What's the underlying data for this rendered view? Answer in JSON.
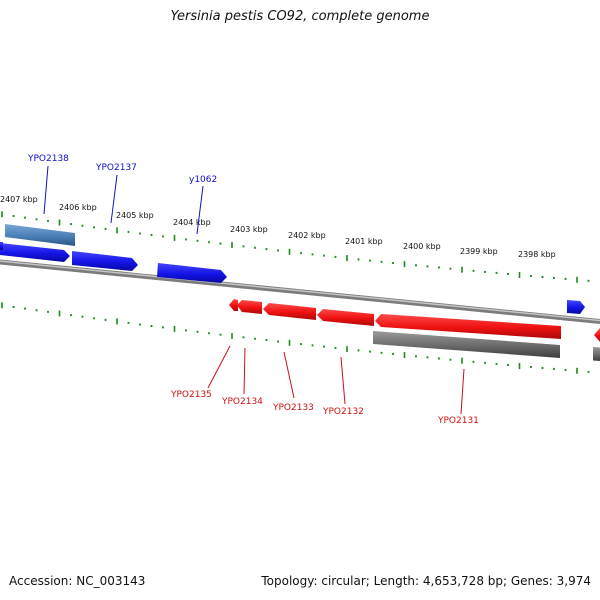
{
  "title": "Yersinia pestis CO92, complete genome",
  "accession_label": "Accession: NC_003143",
  "summary_label": "Topology: circular; Length: 4,653,728 bp; Genes: 3,974",
  "scale_labels": [
    "2407 kbp",
    "2406 kbp",
    "2405 kbp",
    "2404 kbp",
    "2403 kbp",
    "2402 kbp",
    "2401 kbp",
    "2400 kbp",
    "2399 kbp",
    "2398 kbp"
  ],
  "forward_genes": [
    {
      "label": "YPO2138",
      "color": "#1010c8"
    },
    {
      "label": "YPO2137",
      "color": "#1010c8"
    },
    {
      "label": "y1062",
      "color": "#1010c8"
    }
  ],
  "reverse_genes": [
    {
      "label": "YPO2135",
      "color": "#cc1111"
    },
    {
      "label": "YPO2134",
      "color": "#cc1111"
    },
    {
      "label": "YPO2133",
      "color": "#cc1111"
    },
    {
      "label": "YPO2132",
      "color": "#cc1111"
    },
    {
      "label": "YPO2131",
      "color": "#cc1111"
    }
  ],
  "colors": {
    "forward_feature": "#1414e6",
    "reverse_feature": "#ee1111",
    "backbone": "#8a8a8a",
    "tick": "#1a8a1a",
    "forward_extra": "#4a7fb5",
    "reverse_extra": "#6a6a6a"
  }
}
